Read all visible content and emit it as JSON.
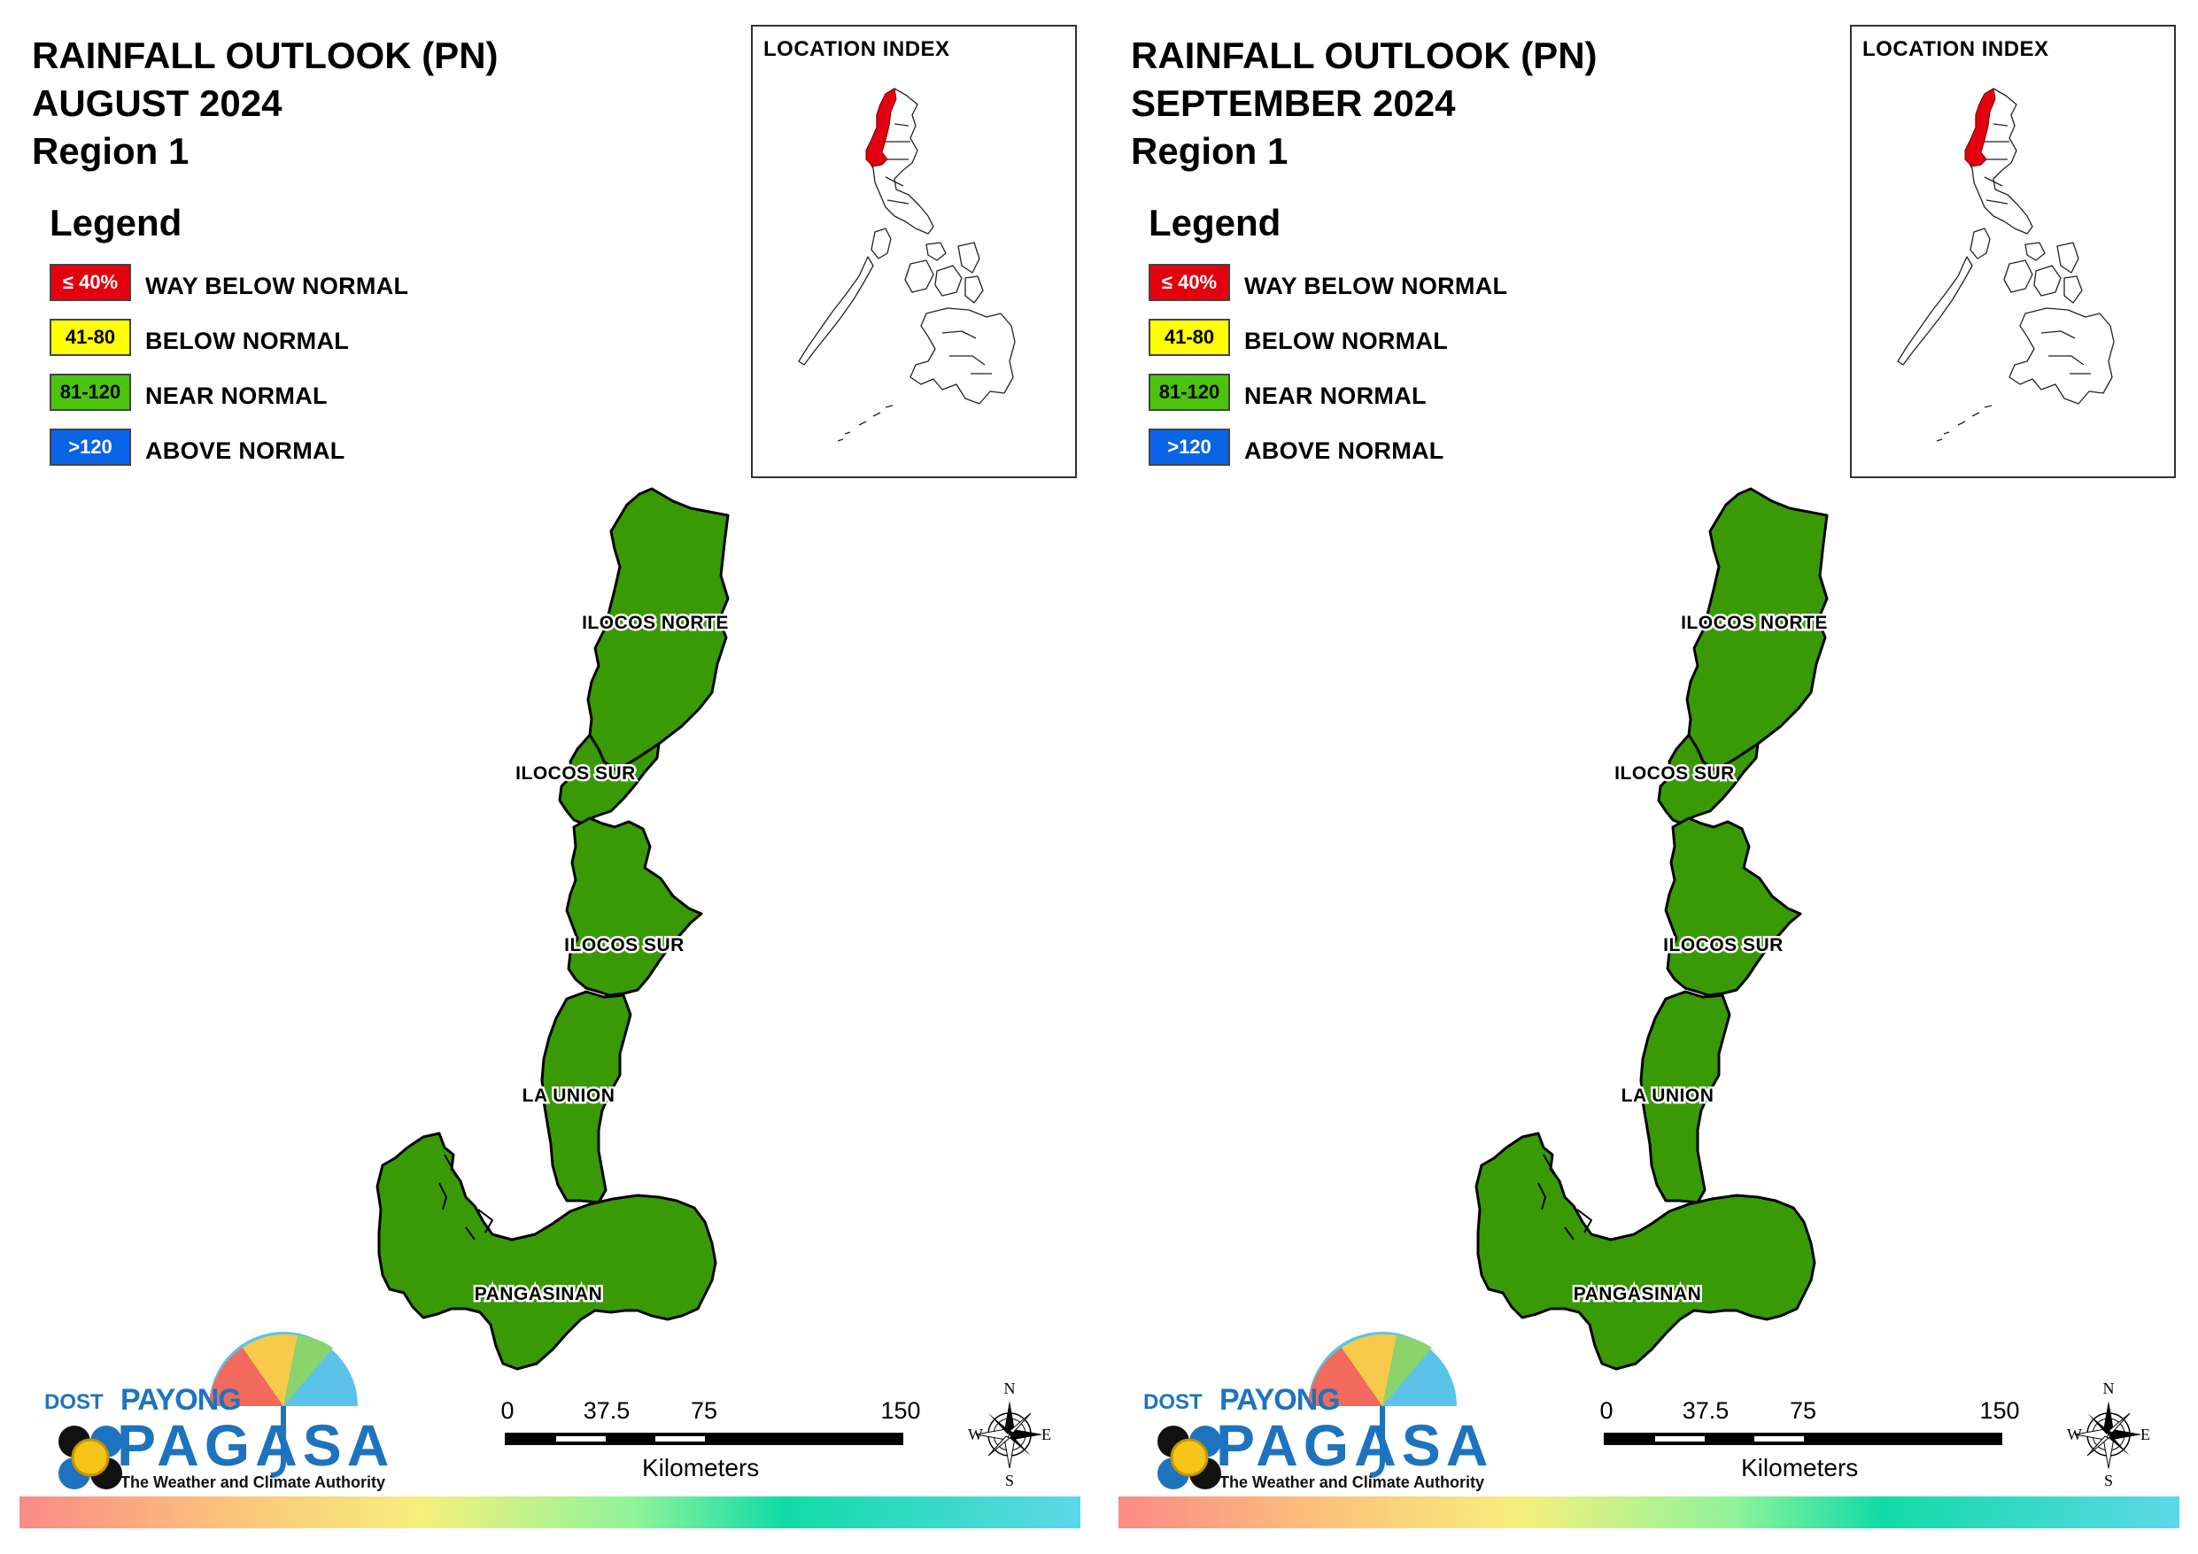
{
  "panels": [
    {
      "title": {
        "line1": "RAINFALL OUTLOOK (PN)",
        "line2": "AUGUST 2024",
        "line3": "Region 1"
      },
      "legend": {
        "heading": "Legend",
        "items": [
          {
            "code": "≤ 40%",
            "label": "WAY BELOW NORMAL",
            "color": "#e3000f",
            "text_color": "#ffffff"
          },
          {
            "code": "41-80",
            "label": "BELOW NORMAL",
            "color": "#ffff00",
            "text_color": "#000000"
          },
          {
            "code": "81-120",
            "label": "NEAR NORMAL",
            "color": "#4cc40e",
            "text_color": "#000000"
          },
          {
            "code": ">120",
            "label": "ABOVE NORMAL",
            "color": "#0a64e6",
            "text_color": "#ffffff"
          }
        ]
      },
      "inset": {
        "title": "LOCATION INDEX",
        "highlight_color": "#e3000f"
      },
      "provinces": [
        {
          "name": "ILOCOS NORTE",
          "category": "NEAR NORMAL"
        },
        {
          "name": "ILOCOS SUR",
          "category": "NEAR NORMAL"
        },
        {
          "name": "ILOCOS SUR",
          "category": "NEAR NORMAL"
        },
        {
          "name": "LA UNION",
          "category": "NEAR NORMAL"
        },
        {
          "name": "PANGASINAN",
          "category": "NEAR NORMAL"
        }
      ],
      "scale": {
        "ticks": [
          "0",
          "37.5",
          "75",
          "150"
        ],
        "unit": "Kilometers"
      },
      "compass": {
        "n": "N",
        "s": "S",
        "e": "E",
        "w": "W"
      },
      "logo": {
        "dost": "DOST",
        "payong": "PAYONG",
        "pagasa": "PAGASA",
        "tagline": "The Weather and Climate Authority"
      }
    },
    {
      "title": {
        "line1": "RAINFALL OUTLOOK (PN)",
        "line2": "SEPTEMBER 2024",
        "line3": "Region 1"
      },
      "legend": {
        "heading": "Legend",
        "items": [
          {
            "code": "≤ 40%",
            "label": "WAY BELOW NORMAL",
            "color": "#e3000f",
            "text_color": "#ffffff"
          },
          {
            "code": "41-80",
            "label": "BELOW NORMAL",
            "color": "#ffff00",
            "text_color": "#000000"
          },
          {
            "code": "81-120",
            "label": "NEAR NORMAL",
            "color": "#4cc40e",
            "text_color": "#000000"
          },
          {
            "code": ">120",
            "label": "ABOVE NORMAL",
            "color": "#0a64e6",
            "text_color": "#ffffff"
          }
        ]
      },
      "inset": {
        "title": "LOCATION INDEX",
        "highlight_color": "#e3000f"
      },
      "provinces": [
        {
          "name": "ILOCOS NORTE",
          "category": "NEAR NORMAL"
        },
        {
          "name": "ILOCOS SUR",
          "category": "NEAR NORMAL"
        },
        {
          "name": "ILOCOS SUR",
          "category": "NEAR NORMAL"
        },
        {
          "name": "LA UNION",
          "category": "NEAR NORMAL"
        },
        {
          "name": "PANGASINAN",
          "category": "NEAR NORMAL"
        }
      ],
      "scale": {
        "ticks": [
          "0",
          "37.5",
          "75",
          "150"
        ],
        "unit": "Kilometers"
      },
      "compass": {
        "n": "N",
        "s": "S",
        "e": "E",
        "w": "W"
      },
      "logo": {
        "dost": "DOST",
        "payong": "PAYONG",
        "pagasa": "PAGASA",
        "tagline": "The Weather and Climate Authority"
      }
    }
  ],
  "colors": {
    "near_normal_fill": "#3a9a06",
    "rainbow": [
      "#fb8a86",
      "#fbc47a",
      "#f5f07c",
      "#8ff39a",
      "#11dba6",
      "#5cd8e8"
    ]
  }
}
